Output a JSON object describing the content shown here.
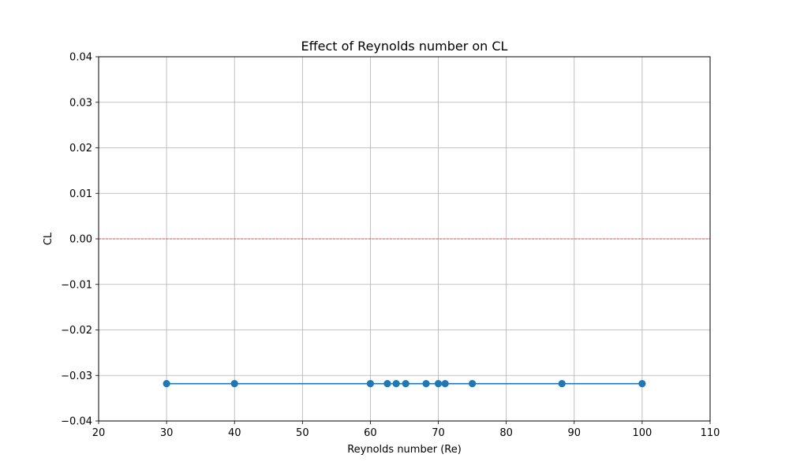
{
  "chart_data": {
    "type": "line",
    "title": "Effect of Reynolds number on CL",
    "xlabel": "Reynolds number (Re)",
    "ylabel": "CL",
    "xlim": [
      20,
      110
    ],
    "ylim": [
      -0.04,
      0.04
    ],
    "x_ticks": [
      20,
      30,
      40,
      50,
      60,
      70,
      80,
      90,
      100,
      110
    ],
    "y_ticks": [
      -0.04,
      -0.03,
      -0.02,
      -0.01,
      0.0,
      0.01,
      0.02,
      0.03,
      0.04
    ],
    "grid": true,
    "reference_line": {
      "y": 0.0,
      "style": "dashed",
      "color": "#d62728"
    },
    "series": [
      {
        "color": "#1f77b4",
        "marker": "circle",
        "x": [
          30,
          40,
          60,
          62.5,
          63.8,
          65.2,
          68.2,
          70.0,
          71.0,
          75.0,
          88.2,
          100
        ],
        "y": [
          -0.0318,
          -0.0318,
          -0.0318,
          -0.0318,
          -0.0318,
          -0.0318,
          -0.0318,
          -0.0318,
          -0.0318,
          -0.0318,
          -0.0318,
          -0.0318
        ]
      }
    ]
  }
}
